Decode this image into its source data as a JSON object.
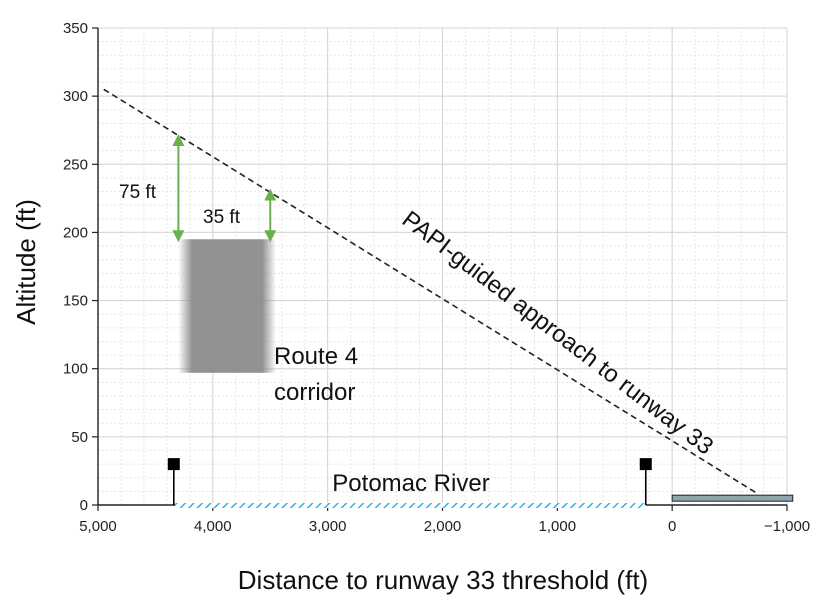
{
  "chart_data": {
    "type": "line",
    "title": "",
    "xlabel": "Distance to runway 33 threshold (ft)",
    "ylabel": "Altitude (ft)",
    "xlim": [
      5000,
      -1000
    ],
    "ylim": [
      0,
      350
    ],
    "x_ticks": [
      5000,
      4000,
      3000,
      2000,
      1000,
      0,
      -1000
    ],
    "x_tick_labels": [
      "5,000",
      "4,000",
      "3,000",
      "2,000",
      "1,000",
      "0",
      "−1,000"
    ],
    "y_ticks": [
      0,
      50,
      100,
      150,
      200,
      250,
      300,
      350
    ],
    "y_tick_labels": [
      "0",
      "50",
      "100",
      "150",
      "200",
      "250",
      "300",
      "350"
    ],
    "grid": true,
    "minor_grid": true,
    "series": [
      {
        "name": "PAPI-guided approach to runway 33",
        "style": "dashed",
        "color": "#222222",
        "x": [
          4950,
          -750
        ],
        "y": [
          305,
          8
        ]
      }
    ],
    "regions": [
      {
        "label": "Route 4 corridor",
        "x_range": [
          4300,
          3450
        ],
        "y_range": [
          97,
          195
        ],
        "color": "#8c8c8c"
      }
    ],
    "river": {
      "label": "Potomac River",
      "x_range": [
        4330,
        230
      ],
      "y": 0,
      "color": "#29b6e6"
    },
    "runway": {
      "x_range": [
        0,
        -1050
      ],
      "y": 5,
      "color": "#90a4ae"
    },
    "towers": [
      {
        "x": 4340,
        "height": 30
      },
      {
        "x": 230,
        "height": 30
      }
    ],
    "clearance_arrows": [
      {
        "label": "75 ft",
        "x": 4300,
        "y_from": 195,
        "y_to": 270,
        "color": "#6ab04c"
      },
      {
        "label": "35 ft",
        "x": 3500,
        "y_from": 195,
        "y_to": 230,
        "color": "#6ab04c"
      }
    ],
    "annotations": [
      {
        "text": "PAPI-guided approach to runway 33"
      },
      {
        "text": "Route 4 corridor"
      },
      {
        "text": "Potomac River"
      },
      {
        "text": "75 ft"
      },
      {
        "text": "35 ft"
      }
    ]
  }
}
